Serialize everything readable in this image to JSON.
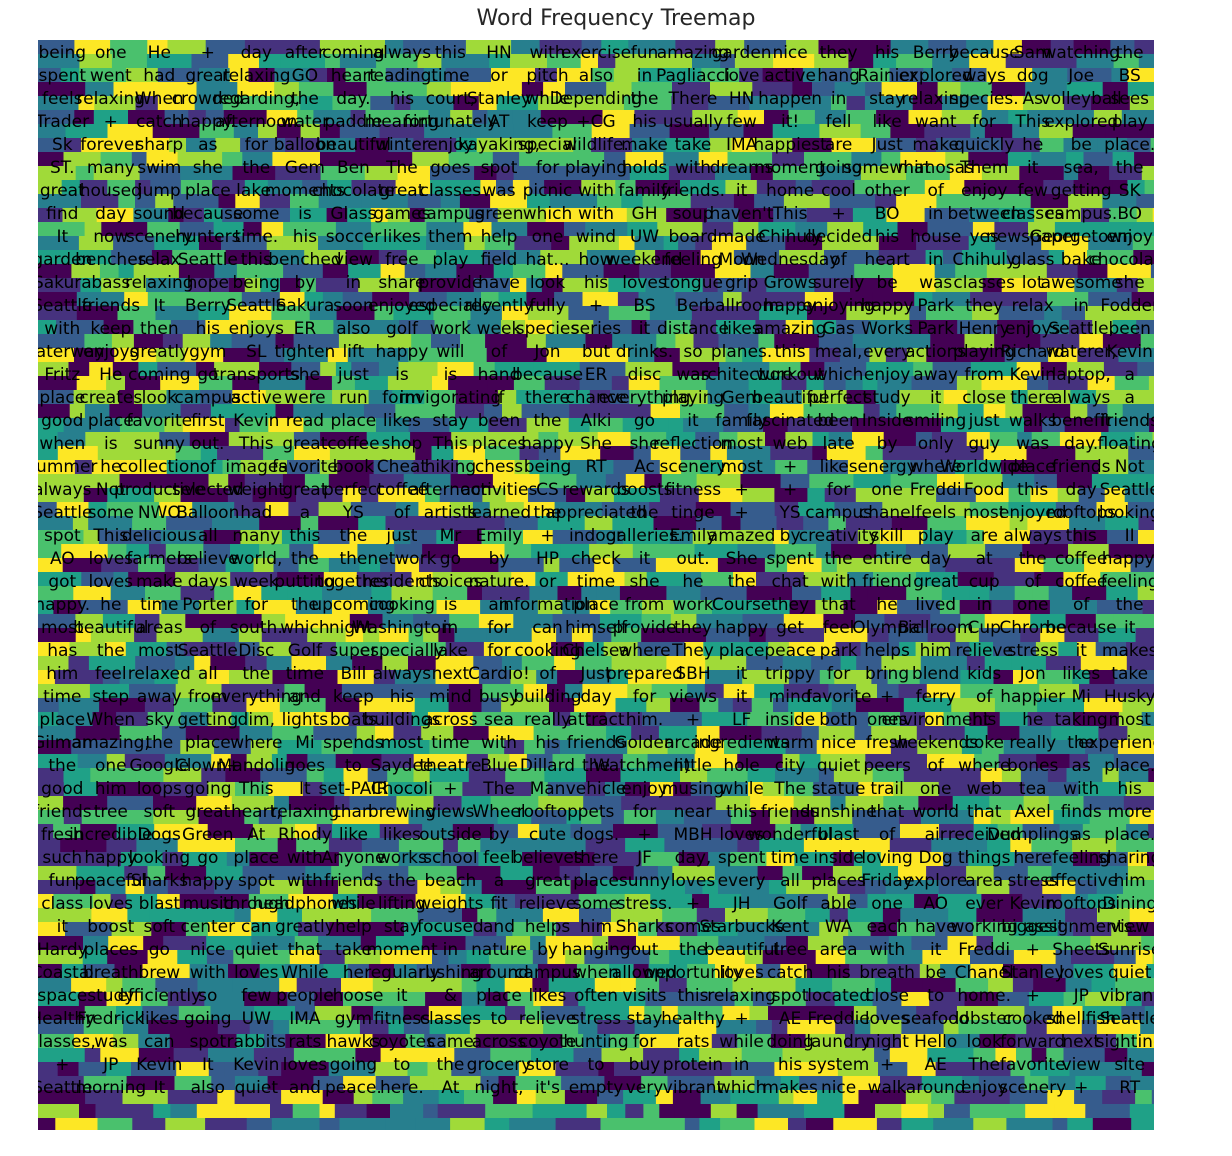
{
  "chart_data": {
    "type": "treemap",
    "title": "Word Frequency Treemap",
    "colormap": "viridis",
    "palette": [
      "#440154",
      "#46327e",
      "#365c8d",
      "#277f8e",
      "#1fa187",
      "#4ac16d",
      "#a0da39",
      "#fde725"
    ],
    "label_color": "#000000",
    "words": [
      "being",
      "one",
      "He",
      "+",
      "day",
      "after",
      "coming",
      "always",
      "this",
      "HN",
      "with",
      "exercise",
      "fun",
      "amazing",
      "garden",
      "nice",
      "they",
      "his",
      "Berry",
      "because",
      "Sam",
      "watching",
      "the",
      "spent",
      "went",
      "had",
      "great",
      "relaxing",
      "GO",
      "heart",
      "reading.",
      "time",
      "or",
      "pitch",
      "also",
      "in",
      "Pagliacci",
      "love",
      "active",
      "hang",
      "Rainier",
      "explored",
      "ways",
      "dog",
      "Joe",
      "BS",
      "feels",
      "relaxing",
      "When",
      "crowded",
      "regarding,",
      "the",
      "day.",
      "his",
      "court,",
      "Stanley",
      "while",
      "Depending",
      "the",
      "There",
      "HN",
      "happen",
      "in",
      "stay",
      "relaxing",
      "species.",
      "As",
      "volleyball",
      "sees",
      "Trader",
      "+",
      "catch",
      "happy.",
      "afternoon",
      "water",
      "paddle",
      "meaning",
      "fortunately",
      "AT",
      "keep",
      "+CG",
      "his",
      "usually",
      "few",
      "it!",
      "fell",
      "like",
      "want",
      "for",
      "This",
      "explored",
      "play",
      "Sk",
      "forever",
      "sharp",
      "as",
      "for",
      "balloon",
      "beautiful",
      "winter",
      "enjoy",
      "kayaking,",
      "special",
      "wildlife.",
      "make",
      "take",
      "IMA",
      "happiest",
      "are",
      "Just",
      "make",
      "quickly",
      "he",
      "be",
      "place.",
      "ST.",
      "many",
      "swim",
      "she",
      "the",
      "Gem",
      "Ben",
      "The",
      "goes",
      "spot",
      "for",
      "playing",
      "holds",
      "with",
      "dreams",
      "moment",
      "going",
      "somewhat",
      "mimosas",
      "Them",
      "it",
      "sea,",
      "the",
      "great",
      "housed",
      "jump",
      "place",
      "lake.",
      "moments",
      "chocolate",
      "great",
      "classes",
      "was",
      "picnic",
      "with",
      "family",
      "friends.",
      "it",
      "home",
      "cool",
      "other",
      "of",
      "enjoy",
      "few",
      "getting",
      "SK",
      "find",
      "day",
      "sound",
      "because",
      "some",
      "is",
      "Glass",
      "games",
      "campus",
      "green",
      "which",
      "with",
      "GH",
      "soup",
      "haven't",
      "This",
      "+",
      "BO",
      "in",
      "between",
      "classes",
      "campus.",
      "BO",
      "It",
      "now",
      "scenery",
      "hunters",
      "time.",
      "his",
      "soccer",
      "likes",
      "them",
      "help",
      "one",
      "wind",
      "UW",
      "board",
      "made",
      "Chihuly",
      "decided",
      "his",
      "house",
      "yes",
      "newspaper",
      "Georgetown",
      "enjoy",
      "garden",
      "benches",
      "relax",
      "Seattle",
      "this",
      "benched",
      "view",
      "free",
      "play",
      "field",
      "hat...",
      "how",
      "weekend",
      "feeling",
      "Moon",
      "Wednesday",
      "of",
      "heart",
      "in",
      "Chihuly",
      "glass",
      "bake",
      "chocolate",
      "Sakura",
      "bass",
      "relaxing",
      "hope",
      "being",
      "by",
      "in",
      "share",
      "provide",
      "have",
      "look",
      "his",
      "loves",
      "tongue",
      "grip",
      "Grows",
      "surely",
      "be",
      "was",
      "classes",
      "lot",
      "awesome",
      "she",
      "Seattle",
      "friends",
      "It",
      "Berry",
      "Seattle",
      "Sakura",
      "soon",
      "enjoyed",
      "especially",
      "recently",
      "fully",
      "+",
      "BS",
      "Ben",
      "ballroom",
      "happy",
      "enjoying",
      "happy",
      "Park",
      "they",
      "relax",
      "in",
      "Fodder",
      "with",
      "keep",
      "then",
      "his",
      "enjoys",
      "ER",
      "also",
      "golf",
      "work",
      "week",
      "species",
      "series",
      "it",
      "distance",
      "likes",
      "amazing",
      "Gas",
      "Works",
      "Park",
      "Henry",
      "enjoys",
      "Seattle,",
      "been",
      "Waterway",
      "enjoys",
      "greatly",
      "gym",
      "SL",
      "tighten",
      "lift",
      "happy",
      "will",
      "of",
      "Jon",
      "but",
      "drinks.",
      "so",
      "planes.",
      "this",
      "meal,",
      "every",
      "actions",
      "playing",
      "Richard",
      "waterer,",
      "Kevin",
      "Fritz",
      "He",
      "coming",
      "go",
      "transports",
      "she",
      "just",
      "is",
      "is",
      "hand",
      "because",
      "ER",
      "disc",
      "was",
      "architecture",
      "workout",
      "which",
      "enjoy",
      "away",
      "from",
      "Kevin",
      "laptop,",
      "a",
      "place",
      "creates",
      "look",
      "campus",
      "active",
      "were",
      "run",
      "form",
      "invigorating",
      "if",
      "there",
      "chance",
      "everything",
      "playing",
      "Gem",
      "beautiful",
      "perfect",
      "study",
      "it",
      "close",
      "there",
      "always",
      "a",
      "good",
      "place",
      "favorite",
      "first",
      "Kevin",
      "read",
      "place",
      "likes",
      "stay",
      "been",
      "the",
      "Alki",
      "go",
      "it",
      "family",
      "fascinated",
      "been",
      "Inside",
      "smiling",
      "just",
      "walks",
      "benefit",
      "friends",
      "when",
      "is",
      "sunny",
      "out.",
      "This",
      "great",
      "coffee",
      "shop",
      "This",
      "places",
      "happy",
      "She",
      "she",
      "reflection",
      "most",
      "web",
      "late",
      "by",
      "only",
      "guy",
      "was",
      "day.",
      "floating",
      "summer",
      "he",
      "collection",
      "of",
      "images",
      "favorite",
      "book",
      "Cheat",
      "hiking",
      "chess",
      "being",
      "RT",
      "Ac",
      "scenery",
      "most",
      "+",
      "likes",
      "energy",
      "where",
      "Worldwide",
      "place",
      "friends",
      "Not",
      "always",
      "Not",
      "productive",
      "selected",
      "weight",
      "great",
      "perfect",
      "coffee",
      "afternoon",
      "activities",
      "CS",
      "rewards",
      "boosts",
      "fitness",
      "+",
      "+",
      "for",
      "one",
      "Freddi",
      "Food",
      "this",
      "day",
      "Seattle",
      "Seattle",
      "some",
      "NWO",
      "Balloon",
      "had",
      "a",
      "YS",
      "of",
      "artists",
      "learned",
      "the",
      "appreciated",
      "the",
      "tinge",
      "+",
      "YS",
      "campus",
      "chanel",
      "feels",
      "most",
      "enjoyed",
      "rooftops",
      "looking",
      "spot",
      "This",
      "delicious",
      "all",
      "many",
      "this",
      "the",
      "just",
      "Mr",
      "Emily",
      "+",
      "indoor",
      "galleries.",
      "Emily",
      "amazed",
      "by",
      "creativity",
      "skill",
      "play",
      "are",
      "always",
      "this",
      "II",
      "AO",
      "loves",
      "farmers",
      "believe",
      "world,",
      "the",
      "the",
      "network",
      "go",
      "by",
      "HP",
      "check",
      "it",
      "out.",
      "She",
      "spent",
      "the",
      "entire",
      "day",
      "at",
      "the",
      "coffee",
      "happy.",
      "got",
      "loves",
      "make",
      "days",
      "week",
      "putting",
      "together",
      "residents",
      "choices",
      "nature.",
      "or",
      "time",
      "she",
      "he",
      "the",
      "chat",
      "with",
      "friend",
      "great",
      "cup",
      "of",
      "coffee",
      "feeling",
      "happy.",
      "he",
      "time",
      "Porter",
      "for",
      "the",
      "upcoming",
      "cooking",
      "is",
      "an",
      "information",
      "place",
      "from",
      "work",
      "Course",
      "they",
      "that",
      "he",
      "lived",
      "in",
      "one",
      "of",
      "the",
      "most",
      "beautiful",
      "areas",
      "of",
      "south.",
      "which",
      "night.",
      "Washington",
      "in",
      "for",
      "can",
      "himself",
      "provide",
      "they",
      "happy",
      "get",
      "feel",
      "Olympic",
      "Ballroom",
      "Cup",
      "Chrome",
      "because",
      "it",
      "has",
      "the",
      "most",
      "Seattle",
      "Disc",
      "Golf",
      "super",
      "especially",
      "lake",
      "for",
      "cooking",
      "Chelsea",
      "where",
      "They",
      "place",
      "peace",
      "park",
      "helps",
      "him",
      "relieve",
      "stress",
      "it",
      "makes",
      "him",
      "feel",
      "relaxed",
      "all",
      "the",
      "time",
      "Bill",
      "always",
      "next",
      "Cardio!",
      "of",
      "Just",
      "prepared",
      "SBH",
      "it",
      "trippy",
      "for",
      "bring",
      "blend",
      "kids",
      "Jon",
      "likes",
      "take",
      "time",
      "step",
      "away",
      "from",
      "everything",
      "and",
      "keep",
      "his",
      "mind",
      "busy",
      "building",
      "day",
      "for",
      "views",
      "it",
      "mind",
      "favorite",
      "+",
      "ferry",
      "of",
      "happier",
      "Mi",
      "Husky",
      "place",
      "When",
      "sky",
      "getting",
      "dim,",
      "lights",
      "boats",
      "buildings",
      "across",
      "sea",
      "really",
      "attract",
      "him.",
      "+",
      "LF",
      "inside",
      "both",
      "ones",
      "environment",
      "his",
      "he",
      "taking",
      "most",
      "Gilman",
      "amazing,",
      "the",
      "place",
      "where",
      "Mi",
      "spends",
      "most",
      "time",
      "with",
      "his",
      "friends",
      "Golden",
      "arcade",
      "ingredients",
      "warm",
      "nice",
      "fresh",
      "weekends",
      "coke",
      "really",
      "the",
      "experiences",
      "the",
      "one",
      "Google",
      "Clown+",
      "Mandolin",
      "goes",
      "to",
      "Saydee",
      "theatre",
      "Blue",
      "Dillard",
      "the",
      "Watchmen).",
      "little",
      "hole",
      "city",
      "quiet",
      "peers",
      "of",
      "where",
      "bones",
      "as",
      "place.",
      "good",
      "him",
      "loops",
      "going",
      "This",
      "It",
      "set-PAIR",
      "Chocoli",
      "+",
      "The",
      "Man",
      "vehicle",
      "enjoy",
      "musing",
      "while",
      "The",
      "statue",
      "trail",
      "one",
      "web",
      "tea",
      "with",
      "his",
      "friends",
      "tree",
      "soft",
      "great",
      "heart,",
      "relaxing",
      "than",
      "brewing",
      "views",
      "Wheel",
      "rooftop",
      "pets",
      "for",
      "near",
      "this",
      "friends",
      "sunshine",
      "that",
      "world",
      "that",
      "Axel",
      "finds",
      "more",
      "fresh",
      "incredible",
      "Dogs",
      "Green",
      "At",
      "Rhody",
      "like",
      "likes",
      "outside",
      "by",
      "cute",
      "dogs.",
      "+",
      "MBH",
      "loves",
      "wonderful",
      "blast",
      "of",
      "air",
      "received",
      "Dumplings",
      "as",
      "place.",
      "such",
      "happy",
      "looking",
      "go",
      "place",
      "with",
      "Anyone",
      "works",
      "school",
      "feel",
      "believes",
      "there",
      "JF",
      "day,",
      "spent",
      "time",
      "inside",
      "loving",
      "Dog",
      "things",
      "here",
      "feeling",
      "sharing",
      "fun",
      "peaceful",
      "Sharks",
      "happy",
      "spot",
      "with",
      "friends",
      "the",
      "beach",
      "a",
      "great",
      "place",
      "sunny",
      "loves",
      "every",
      "all",
      "places",
      "Friday",
      "explore",
      "area",
      "stress",
      "effective",
      "him",
      "class",
      "loves",
      "blast",
      "music",
      "through",
      "headphones",
      "while",
      "lifting",
      "weights",
      "fit",
      "relieve",
      "some",
      "stress.",
      "+",
      "JH",
      "Golf",
      "able",
      "one",
      "AO",
      "ever",
      "Kevin",
      "rooftops",
      "Dining",
      "it",
      "boost",
      "soft",
      "center",
      "can",
      "greatly",
      "help",
      "stay",
      "focused",
      "and",
      "helps",
      "him",
      "Sharks",
      "comes",
      "Starbucks",
      "Kent",
      "WA",
      "each",
      "have",
      "working",
      "biggest",
      "assignments.",
      "view",
      "Hardy",
      "places",
      "go",
      "nice",
      "quiet",
      "that",
      "take",
      "moment",
      "in",
      "nature",
      "by",
      "hanging",
      "out",
      "the",
      "beautiful",
      "tree",
      "area",
      "with",
      "it",
      "Freddi",
      "+",
      "Sheets",
      "Sunrise",
      "Coastal",
      "breath",
      "brew",
      "with",
      "loves",
      "While",
      "he",
      "regularly",
      "rushing",
      "around",
      "campus",
      "when",
      "allowed",
      "opportunity",
      "loves",
      "catch",
      "his",
      "breath",
      "be",
      "Chanel",
      "Stanley",
      "loves",
      "quiet",
      "space",
      "study",
      "efficiently",
      "so",
      "few",
      "people",
      "choose",
      "it",
      "&",
      "place",
      "likes",
      "often",
      "visits",
      "this",
      "relaxing",
      "spot",
      "located",
      "close",
      "to",
      "home.",
      "+",
      "JP",
      "vibrant",
      "Healthy",
      "Fredrick",
      "likes",
      "going",
      "UW",
      "IMA",
      "gym",
      "fitness",
      "classes",
      "to",
      "relieve",
      "stress",
      "stay",
      "healthy",
      "+",
      "AE",
      "Freddie",
      "loves",
      "seafood",
      "lobster",
      "cooked",
      "shellfish",
      "Seattle",
      "classes,",
      "was",
      "can",
      "spot",
      "rabbits",
      "rats",
      "hawks",
      "coyotes",
      "came",
      "across",
      "coyote",
      "hunting",
      "for",
      "rats",
      "while",
      "doing",
      "laundry",
      "night",
      "Hello",
      "look",
      "forward",
      "next",
      "sighting",
      "+",
      "JP",
      "Kevin",
      "It",
      "Kevin",
      "loves",
      "going",
      "to",
      "the",
      "grocery",
      "store",
      "to",
      "buy",
      "protein",
      "in",
      "his",
      "system",
      "+",
      "AE",
      "The",
      "favorite",
      "view",
      "site",
      "Seattle",
      "morning",
      "It",
      "also",
      "quiet",
      "and",
      "peace.",
      "here.",
      "At",
      "night,",
      "it's",
      "empty",
      "very",
      "vibrant",
      "which",
      "makes",
      "nice",
      "walk",
      "around",
      "enjoy",
      "scenery",
      "+",
      "RT"
    ]
  }
}
